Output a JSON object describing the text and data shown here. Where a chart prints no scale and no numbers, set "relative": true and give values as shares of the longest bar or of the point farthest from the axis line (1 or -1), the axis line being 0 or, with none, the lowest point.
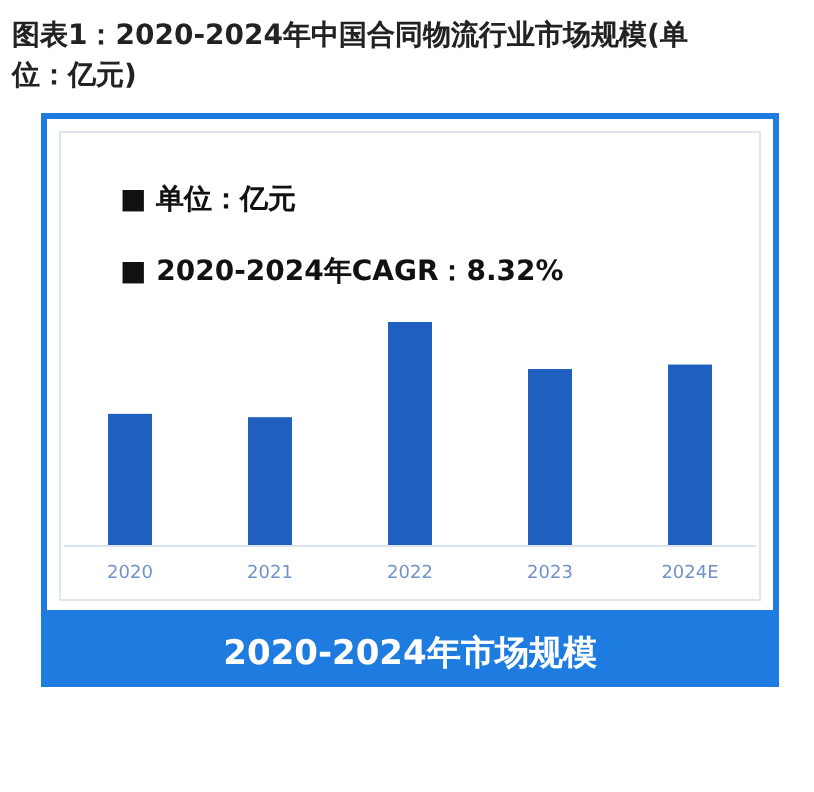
{
  "chart_data": {
    "type": "bar",
    "title": "图表1：2020-2024年中国合同物流行业市场规模(单位：亿元)",
    "xlabel": "2020-2024年市场规模",
    "annotations": [
      "■  单位：亿元",
      "■  2020-2024年CAGR：8.32%"
    ],
    "categories": [
      "2020",
      "2021",
      "2022",
      "2023",
      "2024E"
    ],
    "values": [
      0.59,
      0.575,
      1,
      0.79,
      0.81
    ],
    "color": "#1f5fbf",
    "relative": true
  }
}
